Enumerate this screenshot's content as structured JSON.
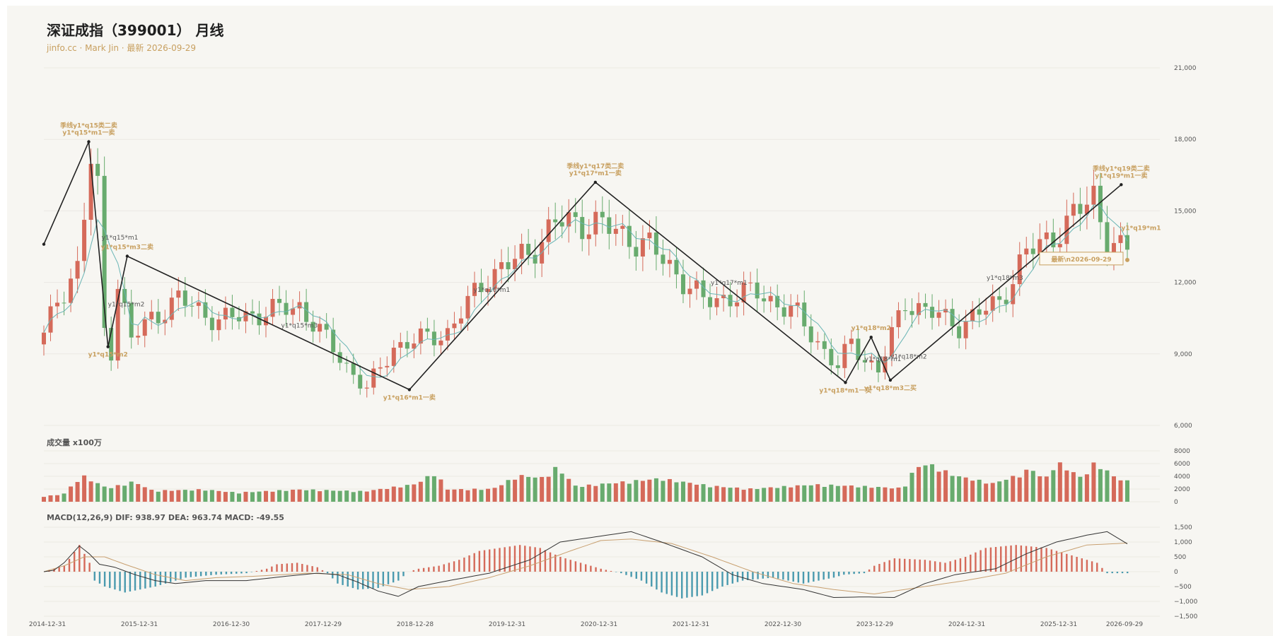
{
  "header": {
    "title": "深证成指（399001） 月线",
    "subtitle": "jinfo.cc · Mark Jin · 最新 2026-09-29"
  },
  "volume_panel": {
    "label": "成交量 x100万"
  },
  "macd_panel": {
    "label": "MACD(12,26,9) DIF: 938.97 DEA: 963.74 MACD: -49.55"
  },
  "colors": {
    "up": "#d56a5a",
    "down": "#68ab6e",
    "ma": "#6ab5b5",
    "dif": "#333333",
    "dea": "#c8a070",
    "macd_pos": "#d56a5a",
    "macd_neg": "#4a9aae",
    "accent": "#c8a060",
    "bg": "#f7f6f2"
  },
  "chart_data": [
    {
      "type": "candlestick",
      "title": "深证成指（399001） 月线",
      "yticks": [
        6000,
        9000,
        12000,
        15000,
        18000,
        21000
      ],
      "ytick_labels": [
        "6,000",
        "9,000",
        "12,000",
        "15,000",
        "18,000",
        "21,000"
      ],
      "ylim": [
        6000,
        21000
      ],
      "xticks": [
        "2014-12-31",
        "2015-12-31",
        "2016-12-30",
        "2017-12-29",
        "2018-12-28",
        "2019-12-31",
        "2020-12-31",
        "2021-12-31",
        "2022-12-30",
        "2023-12-29",
        "2024-12-31",
        "2025-12-31",
        "2026-09-29"
      ],
      "waypoints": [
        [
          0,
          9700
        ],
        [
          2,
          11300
        ],
        [
          5,
          12600
        ],
        [
          7,
          17000
        ],
        [
          8,
          15800
        ],
        [
          9,
          10000
        ],
        [
          10,
          9200
        ],
        [
          11,
          12000
        ],
        [
          13,
          9600
        ],
        [
          16,
          10500
        ],
        [
          20,
          11300
        ],
        [
          26,
          10400
        ],
        [
          38,
          11000
        ],
        [
          45,
          8500
        ],
        [
          48,
          7500
        ],
        [
          52,
          9300
        ],
        [
          60,
          9900
        ],
        [
          66,
          12300
        ],
        [
          72,
          13200
        ],
        [
          76,
          14500
        ],
        [
          82,
          14500
        ],
        [
          90,
          13500
        ],
        [
          94,
          12400
        ],
        [
          98,
          11200
        ],
        [
          106,
          11600
        ],
        [
          112,
          10600
        ],
        [
          118,
          8400
        ],
        [
          120,
          9500
        ],
        [
          122,
          8800
        ],
        [
          124,
          8300
        ],
        [
          128,
          11200
        ],
        [
          136,
          10200
        ],
        [
          142,
          11200
        ],
        [
          146,
          13200
        ],
        [
          152,
          14400
        ],
        [
          156,
          15700
        ],
        [
          158,
          13800
        ],
        [
          160,
          13300
        ]
      ],
      "zigzag": [
        [
          0,
          13600
        ],
        [
          7,
          17900
        ],
        [
          10,
          9300
        ],
        [
          13,
          13100
        ],
        [
          57,
          7500
        ],
        [
          86,
          16200
        ],
        [
          125,
          7800
        ],
        [
          129,
          9700
        ],
        [
          132,
          7900
        ],
        [
          168,
          16100
        ]
      ],
      "annotations": [
        {
          "idx": 7,
          "price": 17900,
          "lines": [
            "季线y1*q15类二卖",
            "y1*q15*m1一卖"
          ],
          "style": "gold",
          "pos": "above"
        },
        {
          "idx": 10,
          "price": 9300,
          "lines": [
            "y1*q15*m2"
          ],
          "style": "gold",
          "pos": "below"
        },
        {
          "idx": 13,
          "price": 13100,
          "lines": [
            "y1*q15*m3二卖"
          ],
          "style": "gold",
          "pos": "above"
        },
        {
          "idx": 9,
          "price": 13800,
          "lines": [
            "y1*q15*m1"
          ],
          "style": "grey",
          "pos": "label"
        },
        {
          "idx": 10,
          "price": 11000,
          "lines": [
            "y1*q15*m2"
          ],
          "style": "grey",
          "pos": "label"
        },
        {
          "idx": 37,
          "price": 10100,
          "lines": [
            "y1*q15*m3"
          ],
          "style": "grey",
          "pos": "label"
        },
        {
          "idx": 57,
          "price": 7500,
          "lines": [
            "y1*q16*m1一卖"
          ],
          "style": "gold",
          "pos": "below"
        },
        {
          "idx": 67,
          "price": 11600,
          "lines": [
            "y1*q16*m1"
          ],
          "style": "grey",
          "pos": "label"
        },
        {
          "idx": 86,
          "price": 16200,
          "lines": [
            "季线y1*q17类二卖",
            "y1*q17*m1一卖"
          ],
          "style": "gold",
          "pos": "above"
        },
        {
          "idx": 104,
          "price": 11900,
          "lines": [
            "y1*q17*m1"
          ],
          "style": "grey",
          "pos": "label"
        },
        {
          "idx": 125,
          "price": 7800,
          "lines": [
            "y1*q18*m1一买"
          ],
          "style": "gold",
          "pos": "below"
        },
        {
          "idx": 129,
          "price": 9700,
          "lines": [
            "y1*q18*m2"
          ],
          "style": "gold",
          "pos": "above"
        },
        {
          "idx": 132,
          "price": 7900,
          "lines": [
            "y1*q18*m3二买"
          ],
          "style": "gold",
          "pos": "below"
        },
        {
          "idx": 128,
          "price": 8700,
          "lines": [
            "y1*q18*m1"
          ],
          "style": "grey",
          "pos": "label"
        },
        {
          "idx": 132,
          "price": 8800,
          "lines": [
            "y1*q18*m2"
          ],
          "style": "grey",
          "pos": "label"
        },
        {
          "idx": 147,
          "price": 12100,
          "lines": [
            "y1*q18*m3"
          ],
          "style": "grey",
          "pos": "label"
        },
        {
          "idx": 168,
          "price": 16100,
          "lines": [
            "季线y1*q19类二卖",
            "y1*q19*m1一卖"
          ],
          "style": "gold",
          "pos": "above"
        },
        {
          "idx": 168,
          "price": 14200,
          "lines": [
            "y1*q19*m1"
          ],
          "style": "gold",
          "pos": "label"
        }
      ],
      "latest_label": "最新\\n2026-09-29",
      "latest_price": 13000
    },
    {
      "type": "bar",
      "name": "volume",
      "yticks": [
        0,
        2000,
        4000,
        6000,
        8000
      ],
      "ylim": [
        0,
        8000
      ],
      "waypoints": [
        [
          0,
          900
        ],
        [
          3,
          1200
        ],
        [
          6,
          4300
        ],
        [
          8,
          3200
        ],
        [
          10,
          2200
        ],
        [
          14,
          3300
        ],
        [
          17,
          1800
        ],
        [
          25,
          2000
        ],
        [
          30,
          1500
        ],
        [
          40,
          2000
        ],
        [
          50,
          1700
        ],
        [
          58,
          2900
        ],
        [
          61,
          4800
        ],
        [
          63,
          2000
        ],
        [
          70,
          2100
        ],
        [
          74,
          4300
        ],
        [
          78,
          3900
        ],
        [
          80,
          5700
        ],
        [
          83,
          2500
        ],
        [
          90,
          3200
        ],
        [
          96,
          3800
        ],
        [
          104,
          2600
        ],
        [
          110,
          2100
        ],
        [
          120,
          2800
        ],
        [
          126,
          2600
        ],
        [
          134,
          2200
        ],
        [
          136,
          5700
        ],
        [
          138,
          6200
        ],
        [
          142,
          4300
        ],
        [
          148,
          3000
        ],
        [
          152,
          4400
        ],
        [
          154,
          5500
        ],
        [
          156,
          3500
        ],
        [
          158,
          6500
        ],
        [
          162,
          3800
        ],
        [
          164,
          6600
        ],
        [
          166,
          4800
        ],
        [
          168,
          3500
        ],
        [
          170,
          3300
        ]
      ]
    },
    {
      "type": "macd",
      "yticks": [
        -1500,
        -1000,
        -500,
        0,
        500,
        1000,
        1500
      ],
      "ytick_labels": [
        "−1,500",
        "−1,000",
        "−500",
        "0",
        "500",
        "1,000",
        "1,500"
      ],
      "ylim": [
        -1500,
        1500
      ],
      "dif": [
        [
          0,
          0
        ],
        [
          2,
          50
        ],
        [
          4,
          300
        ],
        [
          7,
          870
        ],
        [
          9,
          600
        ],
        [
          11,
          250
        ],
        [
          14,
          150
        ],
        [
          18,
          -100
        ],
        [
          22,
          -300
        ],
        [
          26,
          -400
        ],
        [
          32,
          -300
        ],
        [
          40,
          -300
        ],
        [
          48,
          -150
        ],
        [
          54,
          -50
        ],
        [
          58,
          -100
        ],
        [
          62,
          -350
        ],
        [
          66,
          -650
        ],
        [
          70,
          -830
        ],
        [
          74,
          -500
        ],
        [
          80,
          -300
        ],
        [
          88,
          -50
        ],
        [
          96,
          400
        ],
        [
          102,
          1000
        ],
        [
          110,
          1200
        ],
        [
          116,
          1350
        ],
        [
          122,
          1000
        ],
        [
          130,
          500
        ],
        [
          136,
          -100
        ],
        [
          142,
          -400
        ],
        [
          150,
          -600
        ],
        [
          156,
          -870
        ],
        [
          162,
          -850
        ],
        [
          168,
          -870
        ],
        [
          174,
          -400
        ],
        [
          180,
          -100
        ],
        [
          188,
          100
        ],
        [
          194,
          600
        ],
        [
          200,
          1000
        ],
        [
          206,
          1230
        ],
        [
          210,
          1350
        ],
        [
          214,
          939
        ]
      ],
      "dea": [
        [
          0,
          0
        ],
        [
          4,
          200
        ],
        [
          8,
          500
        ],
        [
          12,
          500
        ],
        [
          16,
          250
        ],
        [
          22,
          -100
        ],
        [
          28,
          -300
        ],
        [
          34,
          -200
        ],
        [
          42,
          -150
        ],
        [
          52,
          -50
        ],
        [
          60,
          -100
        ],
        [
          66,
          -400
        ],
        [
          72,
          -600
        ],
        [
          80,
          -500
        ],
        [
          88,
          -200
        ],
        [
          96,
          200
        ],
        [
          104,
          700
        ],
        [
          110,
          1050
        ],
        [
          116,
          1100
        ],
        [
          124,
          950
        ],
        [
          132,
          500
        ],
        [
          140,
          0
        ],
        [
          148,
          -400
        ],
        [
          156,
          -600
        ],
        [
          164,
          -750
        ],
        [
          172,
          -550
        ],
        [
          182,
          -300
        ],
        [
          190,
          -50
        ],
        [
          198,
          500
        ],
        [
          206,
          900
        ],
        [
          214,
          964
        ]
      ],
      "macd": [
        [
          0,
          0
        ],
        [
          4,
          200
        ],
        [
          7,
          900
        ],
        [
          9,
          300
        ],
        [
          10,
          -300
        ],
        [
          12,
          -500
        ],
        [
          16,
          -700
        ],
        [
          22,
          -500
        ],
        [
          28,
          -200
        ],
        [
          34,
          -100
        ],
        [
          40,
          -50
        ],
        [
          44,
          100
        ],
        [
          46,
          250
        ],
        [
          50,
          300
        ],
        [
          54,
          150
        ],
        [
          56,
          -50
        ],
        [
          58,
          -400
        ],
        [
          62,
          -600
        ],
        [
          66,
          -550
        ],
        [
          70,
          -300
        ],
        [
          72,
          0
        ],
        [
          74,
          100
        ],
        [
          78,
          200
        ],
        [
          82,
          400
        ],
        [
          86,
          700
        ],
        [
          90,
          800
        ],
        [
          94,
          900
        ],
        [
          98,
          800
        ],
        [
          102,
          500
        ],
        [
          106,
          300
        ],
        [
          110,
          100
        ],
        [
          114,
          -50
        ],
        [
          118,
          -300
        ],
        [
          122,
          -700
        ],
        [
          126,
          -900
        ],
        [
          130,
          -800
        ],
        [
          134,
          -500
        ],
        [
          138,
          -300
        ],
        [
          144,
          -200
        ],
        [
          150,
          -400
        ],
        [
          156,
          -200
        ],
        [
          158,
          -100
        ],
        [
          162,
          -50
        ],
        [
          164,
          200
        ],
        [
          168,
          450
        ],
        [
          174,
          400
        ],
        [
          178,
          300
        ],
        [
          182,
          500
        ],
        [
          186,
          800
        ],
        [
          192,
          900
        ],
        [
          198,
          800
        ],
        [
          202,
          600
        ],
        [
          206,
          400
        ],
        [
          208,
          300
        ],
        [
          210,
          -50
        ],
        [
          214,
          -50
        ]
      ]
    }
  ]
}
